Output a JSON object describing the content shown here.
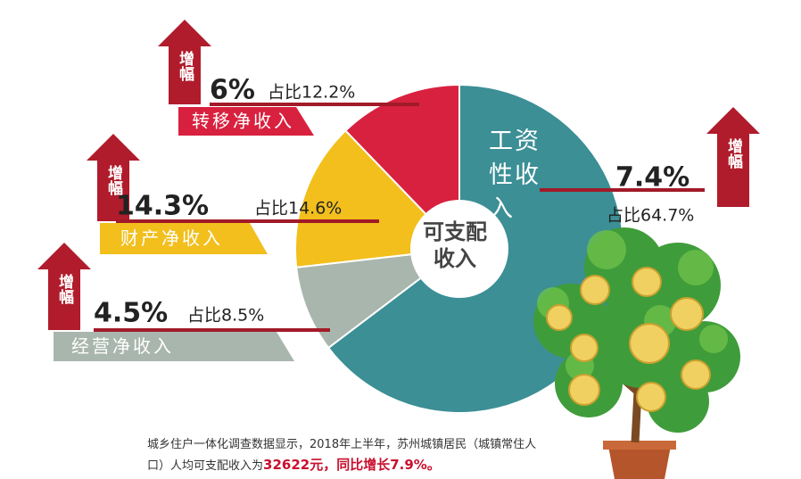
{
  "chart_data": {
    "type": "pie",
    "categories": [
      "工资性收入",
      "经营净收入",
      "财产净收入",
      "转移净收入"
    ],
    "values": [
      64.7,
      8.5,
      14.6,
      12.2
    ],
    "value_labels": [
      "占比64.7%",
      "占比8.5%",
      "占比14.6%",
      "占比12.2%"
    ],
    "colors": [
      "#3b8f95",
      "#a9b6ae",
      "#f2bf1c",
      "#d8213f"
    ],
    "growth": [
      7.4,
      4.5,
      14.3,
      6
    ],
    "growth_labels": [
      "7.4%",
      "4.5%",
      "14.3%",
      "6%"
    ],
    "growth_tag": "增幅",
    "center_label": "可支配收入",
    "note": [
      "城乡住户一体化调查数据显示，2018年上半年，苏州城镇居民（城镇常住人口）人均可支配收入为",
      "32622元",
      "，同比增长7.9%。"
    ]
  }
}
